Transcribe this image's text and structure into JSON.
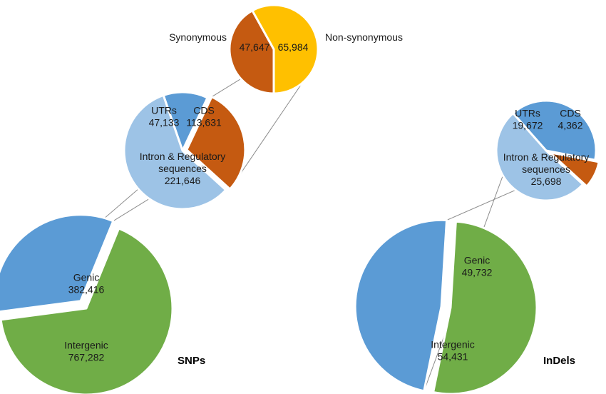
{
  "chart_data": [
    {
      "type": "pie",
      "title": "SNPs",
      "slices": [
        {
          "label": "Intergenic",
          "value": 767282,
          "value_text": "767,282",
          "color": "#70AD47"
        },
        {
          "label": "Genic",
          "value": 382416,
          "value_text": "382,416",
          "color": "#5B9BD5"
        }
      ]
    },
    {
      "type": "pie",
      "title": "",
      "slices": [
        {
          "label": "UTRs",
          "value": 47133,
          "value_text": "47,133",
          "color": "#5B9BD5"
        },
        {
          "label": "CDS",
          "value": 113631,
          "value_text": "113,631",
          "color": "#C55A11"
        },
        {
          "label": "Intron & Regulatory sequences",
          "label_lines": [
            "Intron & Regulatory",
            "sequences"
          ],
          "value": 221646,
          "value_text": "221,646",
          "color": "#9DC3E6"
        }
      ]
    },
    {
      "type": "pie",
      "title": "",
      "slices": [
        {
          "label": "Synonymous",
          "value": 47647,
          "value_text": "47,647",
          "color": "#C55A11"
        },
        {
          "label": "Non-synonymous",
          "value": 65984,
          "value_text": "65,984",
          "color": "#FFC000"
        }
      ]
    },
    {
      "type": "pie",
      "title": "InDels",
      "slices": [
        {
          "label": "Intergenic",
          "value": 54431,
          "value_text": "54,431",
          "color": "#70AD47"
        },
        {
          "label": "Genic",
          "value": 49732,
          "value_text": "49,732",
          "color": "#5B9BD5"
        }
      ]
    },
    {
      "type": "pie",
      "title": "",
      "slices": [
        {
          "label": "UTRs",
          "value": 19672,
          "value_text": "19,672",
          "color": "#5B9BD5"
        },
        {
          "label": "CDS",
          "value": 4362,
          "value_text": "4,362",
          "color": "#C55A11"
        },
        {
          "label": "Intron & Regulatory sequences",
          "label_lines": [
            "Intron & Regulatory",
            "sequences"
          ],
          "value": 25698,
          "value_text": "25,698",
          "color": "#9DC3E6"
        }
      ]
    }
  ]
}
